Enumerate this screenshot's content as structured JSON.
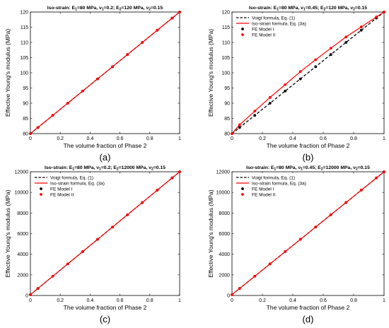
{
  "chart_data": [
    {
      "type": "line",
      "tag": "(a)",
      "title_parts": [
        "Iso-strain: E",
        "1",
        "=80 MPa, ",
        "ν",
        "1",
        "=0.2; E",
        "2",
        "=120 MPa, ",
        "ν",
        "2",
        "=0.15"
      ],
      "xlabel": "The volume fraction of Phase 2",
      "ylabel": "Effective Young's modulus (MPa)",
      "xlim": [
        0,
        1
      ],
      "ylim": [
        80,
        120
      ],
      "xticks": [
        0,
        0.2,
        0.4,
        0.6,
        0.8,
        1
      ],
      "xtick_labels": [
        "0",
        "0.2",
        "0.4",
        "0.6",
        "0.8",
        "1"
      ],
      "yticks": [
        80,
        85,
        90,
        95,
        100,
        105,
        110,
        115,
        120
      ],
      "ytick_labels": [
        "80",
        "85",
        "90",
        "95",
        "100",
        "105",
        "110",
        "115",
        "120"
      ],
      "grid": false,
      "show_legend": false,
      "series": [
        {
          "name": "Voigt formula, Eq. (1)",
          "color": "#000000",
          "style": "dashed",
          "x": [
            0,
            1
          ],
          "y": [
            80,
            120
          ]
        },
        {
          "name": "Iso-strain formula, Eq. (3a)",
          "color": "#ff0000",
          "style": "solid",
          "x": [
            0,
            1
          ],
          "y": [
            80,
            120
          ]
        },
        {
          "name": "FE Model I",
          "color": "#000000",
          "style": "markers",
          "x": [
            0,
            0.05,
            0.15,
            0.25,
            0.35,
            0.45,
            0.55,
            0.65,
            0.75,
            0.85,
            0.95,
            1
          ],
          "y": [
            80,
            82,
            86,
            90,
            94,
            98,
            102,
            106,
            110,
            114,
            118,
            120
          ]
        },
        {
          "name": "FE Model II",
          "color": "#ff0000",
          "style": "markers",
          "x": [
            0,
            0.05,
            0.15,
            0.25,
            0.35,
            0.45,
            0.55,
            0.65,
            0.75,
            0.85,
            0.95,
            1
          ],
          "y": [
            80,
            82,
            86,
            90,
            94,
            98,
            102,
            106,
            110,
            114,
            118,
            120
          ]
        }
      ]
    },
    {
      "type": "line",
      "tag": "(b)",
      "title_parts": [
        "Iso-strain: E",
        "1",
        "=80 MPa, ",
        "ν",
        "1",
        "=0.45; E",
        "2",
        "=120 MPa, ",
        "ν",
        "2",
        "=0.15"
      ],
      "xlabel": "The volume fraction of Phase 2",
      "ylabel": "Effective Young's modulus (MPa)",
      "xlim": [
        0,
        1
      ],
      "ylim": [
        80,
        120
      ],
      "xticks": [
        0,
        0.2,
        0.4,
        0.6,
        0.8,
        1
      ],
      "xtick_labels": [
        "0",
        "0.2",
        "0.4",
        "0.6",
        "0.8",
        "1"
      ],
      "yticks": [
        80,
        85,
        90,
        95,
        100,
        105,
        110,
        115,
        120
      ],
      "ytick_labels": [
        "80",
        "85",
        "90",
        "95",
        "100",
        "105",
        "110",
        "115",
        "120"
      ],
      "grid": false,
      "show_legend": true,
      "legend_position": "top-left",
      "series": [
        {
          "name": "Voigt formula, Eq. (1)",
          "color": "#000000",
          "style": "dashed",
          "x": [
            0,
            1
          ],
          "y": [
            80,
            120
          ]
        },
        {
          "name": "Iso-strain formula, Eq. (3a)",
          "color": "#ff0000",
          "style": "solid",
          "x": [
            0,
            0.05,
            0.15,
            0.25,
            0.35,
            0.45,
            0.55,
            0.65,
            0.75,
            0.85,
            0.95,
            1
          ],
          "y": [
            80,
            82.9,
            87.4,
            91.9,
            96.1,
            100.4,
            104.3,
            108.1,
            111.8,
            115.1,
            118.4,
            120
          ]
        },
        {
          "name": "FE Model I",
          "color": "#000000",
          "style": "markers",
          "x": [
            0,
            0.05,
            0.15,
            0.25,
            0.35,
            0.45,
            0.55,
            0.65,
            0.75,
            0.85,
            0.95,
            1
          ],
          "y": [
            80,
            82,
            86,
            90,
            94,
            98,
            102,
            106,
            110,
            114,
            118,
            120
          ]
        },
        {
          "name": "FE Model II",
          "color": "#ff0000",
          "style": "markers",
          "x": [
            0,
            0.05,
            0.15,
            0.25,
            0.35,
            0.45,
            0.55,
            0.65,
            0.75,
            0.85,
            0.95,
            1
          ],
          "y": [
            80,
            82.9,
            87.4,
            91.9,
            96.1,
            100.4,
            104.3,
            108.1,
            111.8,
            115.1,
            118.4,
            120
          ]
        }
      ]
    },
    {
      "type": "line",
      "tag": "(c)",
      "title_parts": [
        "Iso-strain: E",
        "1",
        "=80 MPa, ",
        "ν",
        "1",
        "=0.2; E",
        "2",
        "=12000 MPa, ",
        "ν",
        "2",
        "=0.15"
      ],
      "xlabel": "The volume fraction of Phase 2",
      "ylabel": "Effective Young's modulus (MPa)",
      "xlim": [
        0,
        1
      ],
      "ylim": [
        0,
        12000
      ],
      "xticks": [
        0,
        0.2,
        0.4,
        0.6,
        0.8,
        1
      ],
      "xtick_labels": [
        "0",
        "0.2",
        "0.4",
        "0.6",
        "0.8",
        "1"
      ],
      "yticks": [
        0,
        2000,
        4000,
        6000,
        8000,
        10000,
        12000
      ],
      "ytick_labels": [
        "0",
        "2000",
        "4000",
        "6000",
        "8000",
        "10000",
        "12000"
      ],
      "grid": false,
      "show_legend": true,
      "legend_position": "top-left",
      "series": [
        {
          "name": "Voigt formula, Eq. (1)",
          "color": "#000000",
          "style": "dashed",
          "x": [
            0,
            1
          ],
          "y": [
            80,
            12000
          ]
        },
        {
          "name": "Iso-strain formula, Eq. (3a)",
          "color": "#ff0000",
          "style": "solid",
          "x": [
            0,
            1
          ],
          "y": [
            80,
            12000
          ]
        },
        {
          "name": "FE Model I",
          "color": "#000000",
          "style": "markers",
          "x": [
            0,
            0.05,
            0.15,
            0.25,
            0.35,
            0.45,
            0.55,
            0.65,
            0.75,
            0.85,
            0.95,
            1
          ],
          "y": [
            80,
            676,
            1868,
            3060,
            4252,
            5444,
            6636,
            7828,
            9020,
            10212,
            11404,
            12000
          ]
        },
        {
          "name": "FE Model II",
          "color": "#ff0000",
          "style": "markers",
          "x": [
            0,
            0.05,
            0.15,
            0.25,
            0.35,
            0.45,
            0.55,
            0.65,
            0.75,
            0.85,
            0.95,
            1
          ],
          "y": [
            80,
            676,
            1868,
            3060,
            4252,
            5444,
            6636,
            7828,
            9020,
            10212,
            11404,
            12000
          ]
        }
      ]
    },
    {
      "type": "line",
      "tag": "(d)",
      "title_parts": [
        "Iso-strain: E",
        "1",
        "=80 MPa, ",
        "ν",
        "1",
        "=0.45; E",
        "2",
        "=12000 MPa, ",
        "ν",
        "2",
        "=0.15"
      ],
      "xlabel": "The volume fraction of Phase 2",
      "ylabel": "Effective Young's modulus (MPa)",
      "xlim": [
        0,
        1
      ],
      "ylim": [
        0,
        12000
      ],
      "xticks": [
        0,
        0.2,
        0.4,
        0.6,
        0.8,
        1
      ],
      "xtick_labels": [
        "0",
        "0.2",
        "0.4",
        "0.6",
        "0.8",
        "1"
      ],
      "yticks": [
        0,
        2000,
        4000,
        6000,
        8000,
        10000,
        12000
      ],
      "ytick_labels": [
        "0",
        "2000",
        "4000",
        "6000",
        "8000",
        "10000",
        "12000"
      ],
      "grid": false,
      "show_legend": true,
      "legend_position": "top-left",
      "series": [
        {
          "name": "Voigt formula, Eq. (1)",
          "color": "#000000",
          "style": "dashed",
          "x": [
            0,
            1
          ],
          "y": [
            80,
            12000
          ]
        },
        {
          "name": "Iso-strain formula, Eq. (3a)",
          "color": "#ff0000",
          "style": "solid",
          "x": [
            0,
            1
          ],
          "y": [
            80,
            12000
          ]
        },
        {
          "name": "FE Model I",
          "color": "#000000",
          "style": "markers",
          "x": [
            0,
            0.05,
            0.15,
            0.25,
            0.35,
            0.45,
            0.55,
            0.65,
            0.75,
            0.85,
            0.95,
            1
          ],
          "y": [
            80,
            680,
            1870,
            3070,
            4260,
            5450,
            6640,
            7830,
            9020,
            10220,
            11410,
            12000
          ]
        },
        {
          "name": "FE Model II",
          "color": "#ff0000",
          "style": "markers",
          "x": [
            0,
            0.05,
            0.15,
            0.25,
            0.35,
            0.45,
            0.55,
            0.65,
            0.75,
            0.85,
            0.95,
            1
          ],
          "y": [
            80,
            680,
            1870,
            3070,
            4260,
            5450,
            6640,
            7830,
            9020,
            10220,
            11410,
            12000
          ]
        }
      ]
    }
  ]
}
